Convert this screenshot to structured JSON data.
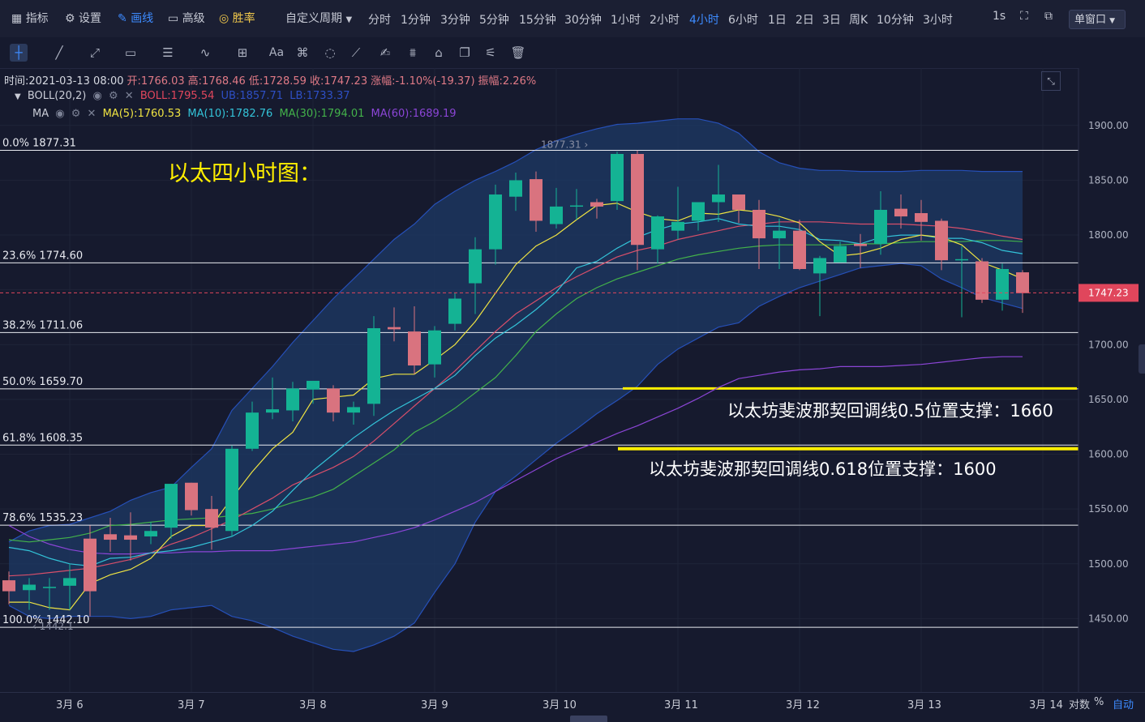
{
  "topbar": {
    "items": [
      {
        "label": "指标",
        "icon": "indicator-icon"
      },
      {
        "label": "设置",
        "icon": "gear-icon"
      },
      {
        "label": "画线",
        "icon": "pencil-icon"
      },
      {
        "label": "高级",
        "icon": "briefcase-icon"
      },
      {
        "label": "胜率",
        "icon": "target-icon"
      }
    ],
    "custom_period": "自定义周期",
    "periods": [
      "分时",
      "1分钟",
      "3分钟",
      "5分钟",
      "15分钟",
      "30分钟",
      "1小时",
      "2小时",
      "4小时",
      "6小时",
      "1日",
      "2日",
      "3日",
      "周K",
      "10分钟",
      "3小时"
    ],
    "active_period": "4小时",
    "interval": "1s",
    "window_mode": "单窗口"
  },
  "toolbar": {
    "tools": [
      "crosshair-icon",
      "trendline-icon",
      "ray-icon",
      "rectangle-icon",
      "parallel-icon",
      "wave-icon",
      "measure-icon",
      "text-icon",
      "fib-icon",
      "circle-icon",
      "ruler-icon",
      "pen-icon",
      "pattern-icon",
      "lock-icon",
      "copy-icon",
      "chart-settings-icon",
      "trash-icon"
    ],
    "text_label": "Aa"
  },
  "ohlc": {
    "time": "时间:2021-03-13 08:00",
    "open": "开:1766.03",
    "high": "高:1768.46",
    "low": "低:1728.59",
    "close": "收:1747.23",
    "change": "涨幅:-1.10%(-19.37)",
    "amplitude": "振幅:2.26%"
  },
  "boll_row": {
    "name": "BOLL(20,2)",
    "boll": "BOLL:1795.54",
    "ub": "UB:1857.71",
    "lb": "LB:1733.37"
  },
  "ma_row": {
    "name": "MA",
    "ma5": "MA(5):1760.53",
    "ma10": "MA(10):1782.76",
    "ma30": "MA(30):1794.01",
    "ma60": "MA(60):1689.19"
  },
  "colors": {
    "up": "#14b394",
    "down": "#d9737f",
    "ma5": "#f0e442",
    "ma10": "#33c3d8",
    "ma30": "#43b24a",
    "ma60": "#8b45d6",
    "boll_mid": "#d84f6a",
    "band": "#1d3a66",
    "band_edge": "#2650b8",
    "annotation": "#ffee00"
  },
  "annotations": {
    "title": "以太四小时图：",
    "support1": "以太坊斐波那契回调线0.5位置支撑：1660",
    "support2": "以太坊斐波那契回调线0.618位置支撑：1600"
  },
  "chart_data": {
    "type": "candlestick",
    "y_axis_labels": [
      "1900.00",
      "1850.00",
      "1800.00",
      "1750.00",
      "1700.00",
      "1650.00",
      "1600.00",
      "1550.00",
      "1500.00",
      "1450.00"
    ],
    "ylim": [
      1403,
      1925
    ],
    "x_labels": [
      "3月 6",
      "3月 7",
      "3月 8",
      "3月 9",
      "3月 10",
      "3月 11",
      "3月 12",
      "3月 13",
      "3月 14"
    ],
    "current_price": "1747.23",
    "high_marker": "1877.31",
    "low_marker": "1442.1",
    "fib_levels": [
      {
        "label": "0.0% 1877.31",
        "price": 1877.31
      },
      {
        "label": "23.6% 1774.60",
        "price": 1774.6
      },
      {
        "label": "38.2% 1711.06",
        "price": 1711.06
      },
      {
        "label": "50.0% 1659.70",
        "price": 1659.7
      },
      {
        "label": "61.8% 1608.35",
        "price": 1608.35
      },
      {
        "label": "78.6% 1535.23",
        "price": 1535.23
      },
      {
        "label": "100.0% 1442.10",
        "price": 1442.1
      }
    ],
    "support_lines": [
      1660,
      1605
    ],
    "candles": [
      [
        1485,
        1475,
        1493,
        1463
      ],
      [
        1476,
        1481,
        1487,
        1458
      ],
      [
        1479,
        1479,
        1487,
        1458
      ],
      [
        1480,
        1487,
        1500,
        1458
      ],
      [
        1523,
        1475,
        1535,
        1452
      ],
      [
        1527,
        1522,
        1542,
        1511
      ],
      [
        1526,
        1522,
        1547,
        1503
      ],
      [
        1525,
        1530,
        1538,
        1518
      ],
      [
        1533,
        1573,
        1573,
        1523
      ],
      [
        1574,
        1549,
        1574,
        1544
      ],
      [
        1550,
        1533,
        1562,
        1513
      ],
      [
        1530,
        1605,
        1608,
        1525
      ],
      [
        1605,
        1638,
        1648,
        1603
      ],
      [
        1638,
        1641,
        1670,
        1632
      ],
      [
        1640,
        1660,
        1666,
        1630
      ],
      [
        1659,
        1667,
        1667,
        1646
      ],
      [
        1660,
        1638,
        1663,
        1630
      ],
      [
        1638,
        1643,
        1648,
        1627
      ],
      [
        1646,
        1715,
        1726,
        1635
      ],
      [
        1716,
        1714,
        1734,
        1703
      ],
      [
        1712,
        1681,
        1735,
        1673
      ],
      [
        1682,
        1713,
        1717,
        1670
      ],
      [
        1719,
        1742,
        1747,
        1713
      ],
      [
        1756,
        1787,
        1798,
        1728
      ],
      [
        1787,
        1837,
        1846,
        1773
      ],
      [
        1835,
        1850,
        1857,
        1822
      ],
      [
        1851,
        1813,
        1858,
        1803
      ],
      [
        1810,
        1826,
        1843,
        1806
      ],
      [
        1826,
        1827,
        1842,
        1814
      ],
      [
        1830,
        1826,
        1833,
        1815
      ],
      [
        1831,
        1874,
        1876,
        1823
      ],
      [
        1874,
        1791,
        1877,
        1768
      ],
      [
        1787,
        1817,
        1818,
        1774
      ],
      [
        1804,
        1812,
        1844,
        1796
      ],
      [
        1813,
        1830,
        1830,
        1804
      ],
      [
        1830,
        1837,
        1864,
        1812
      ],
      [
        1837,
        1823,
        1829,
        1811
      ],
      [
        1823,
        1797,
        1832,
        1769
      ],
      [
        1797,
        1804,
        1815,
        1769
      ],
      [
        1804,
        1769,
        1814,
        1768
      ],
      [
        1765,
        1779,
        1781,
        1726
      ],
      [
        1775,
        1790,
        1794,
        1779
      ],
      [
        1792,
        1790,
        1801,
        1770
      ],
      [
        1792,
        1823,
        1840,
        1782
      ],
      [
        1824,
        1817,
        1837,
        1806
      ],
      [
        1820,
        1812,
        1832,
        1795
      ],
      [
        1813,
        1777,
        1815,
        1768
      ],
      [
        1778,
        1778,
        1790,
        1725
      ],
      [
        1776,
        1741,
        1779,
        1738
      ],
      [
        1741,
        1769,
        1774,
        1731
      ],
      [
        1766,
        1747,
        1768,
        1729
      ]
    ],
    "ma5": [
      1465,
      1465,
      1460,
      1458,
      1482,
      1490,
      1495,
      1505,
      1525,
      1535,
      1535,
      1560,
      1584,
      1605,
      1620,
      1650,
      1652,
      1654,
      1669,
      1673,
      1673,
      1686,
      1700,
      1721,
      1747,
      1773,
      1790,
      1800,
      1814,
      1827,
      1829,
      1821,
      1815,
      1813,
      1820,
      1819,
      1823,
      1821,
      1817,
      1811,
      1794,
      1781,
      1783,
      1788,
      1796,
      1800,
      1798,
      1791,
      1775,
      1768,
      1760
    ],
    "ma10": [
      1515,
      1512,
      1505,
      1500,
      1498,
      1505,
      1506,
      1510,
      1512,
      1515,
      1520,
      1525,
      1535,
      1548,
      1567,
      1585,
      1600,
      1615,
      1628,
      1640,
      1650,
      1660,
      1672,
      1690,
      1706,
      1718,
      1732,
      1748,
      1770,
      1776,
      1788,
      1798,
      1805,
      1810,
      1812,
      1815,
      1810,
      1808,
      1808,
      1805,
      1796,
      1795,
      1792,
      1798,
      1800,
      1800,
      1797,
      1797,
      1793,
      1786,
      1783
    ],
    "ma30": [
      1522,
      1520,
      1522,
      1524,
      1528,
      1535,
      1536,
      1538,
      1540,
      1541,
      1542,
      1544,
      1546,
      1550,
      1556,
      1561,
      1568,
      1580,
      1592,
      1604,
      1620,
      1630,
      1642,
      1656,
      1670,
      1690,
      1712,
      1728,
      1742,
      1752,
      1760,
      1766,
      1772,
      1778,
      1782,
      1785,
      1788,
      1790,
      1791,
      1791,
      1791,
      1791,
      1792,
      1792,
      1793,
      1794,
      1794,
      1794,
      1795,
      1795,
      1794
    ],
    "ma60": [
      1535,
      1525,
      1518,
      1513,
      1510,
      1509,
      1509,
      1510,
      1510,
      1511,
      1511,
      1512,
      1512,
      1512,
      1514,
      1516,
      1518,
      1520,
      1524,
      1528,
      1533,
      1540,
      1548,
      1556,
      1566,
      1576,
      1586,
      1596,
      1604,
      1611,
      1619,
      1626,
      1634,
      1642,
      1651,
      1661,
      1669,
      1672,
      1675,
      1677,
      1678,
      1680,
      1680,
      1680,
      1681,
      1682,
      1684,
      1686,
      1688,
      1689,
      1689
    ],
    "boll_upper": [
      1520,
      1530,
      1535,
      1536,
      1542,
      1548,
      1558,
      1565,
      1570,
      1588,
      1605,
      1640,
      1660,
      1680,
      1702,
      1722,
      1742,
      1760,
      1778,
      1796,
      1810,
      1828,
      1840,
      1850,
      1858,
      1867,
      1878,
      1886,
      1892,
      1897,
      1901,
      1902,
      1904,
      1906,
      1906,
      1902,
      1893,
      1876,
      1866,
      1861,
      1859,
      1859,
      1858,
      1858,
      1858,
      1859,
      1859,
      1859,
      1858,
      1858,
      1858
    ],
    "boll_mid": [
      1489,
      1490,
      1492,
      1494,
      1496,
      1500,
      1504,
      1510,
      1518,
      1524,
      1532,
      1540,
      1550,
      1560,
      1572,
      1580,
      1588,
      1598,
      1612,
      1628,
      1644,
      1660,
      1676,
      1694,
      1712,
      1728,
      1740,
      1752,
      1762,
      1771,
      1780,
      1786,
      1790,
      1796,
      1800,
      1804,
      1808,
      1810,
      1812,
      1812,
      1812,
      1811,
      1810,
      1810,
      1810,
      1809,
      1808,
      1806,
      1803,
      1799,
      1796
    ],
    "boll_lower": [
      1462,
      1452,
      1450,
      1452,
      1452,
      1452,
      1450,
      1452,
      1458,
      1460,
      1462,
      1452,
      1448,
      1442,
      1434,
      1428,
      1422,
      1420,
      1426,
      1434,
      1446,
      1474,
      1500,
      1538,
      1566,
      1580,
      1595,
      1610,
      1623,
      1637,
      1649,
      1662,
      1682,
      1696,
      1706,
      1716,
      1720,
      1735,
      1744,
      1752,
      1758,
      1764,
      1770,
      1772,
      1774,
      1772,
      1760,
      1752,
      1743,
      1738,
      1733
    ]
  }
}
